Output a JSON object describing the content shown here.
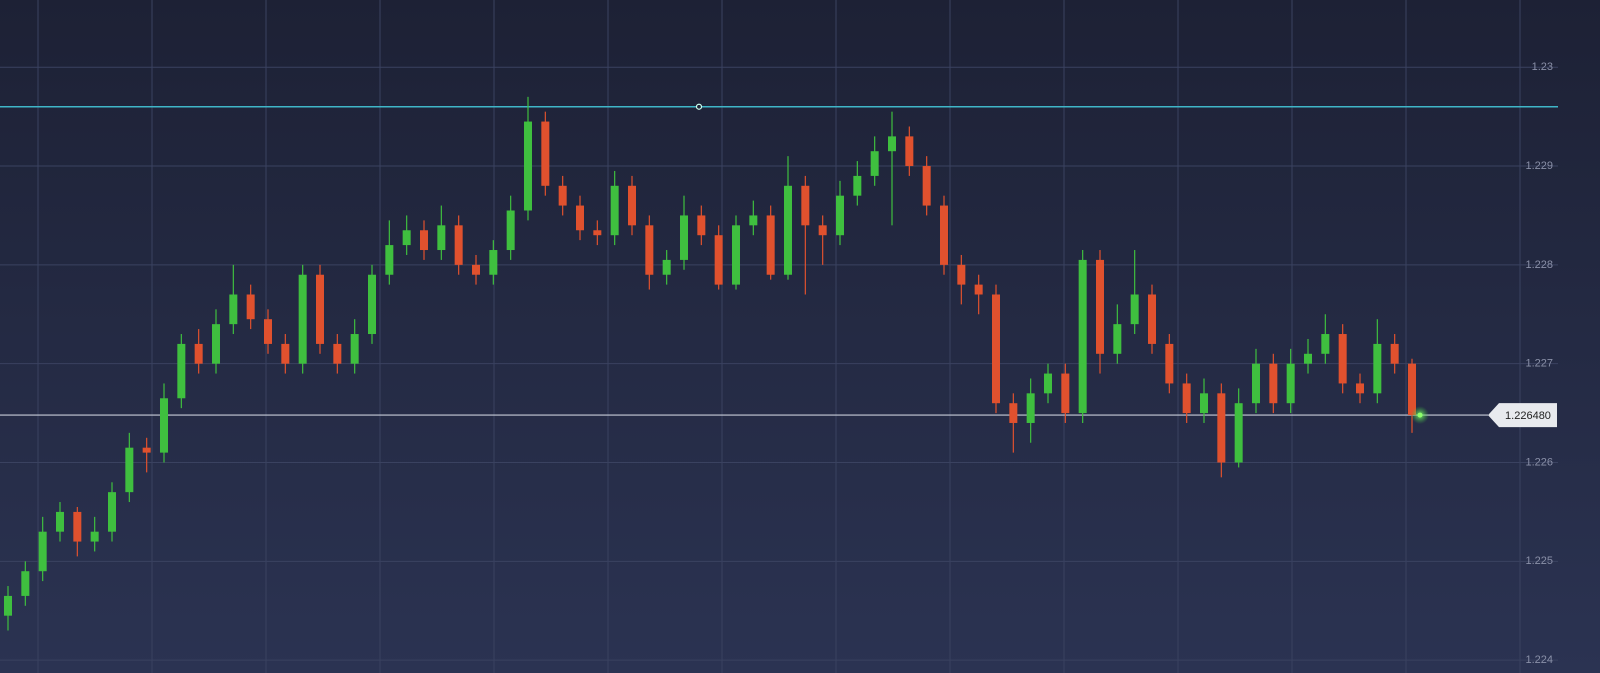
{
  "chart_data": {
    "type": "candlestick",
    "up_color": "#3fbf3f",
    "down_color": "#e0512e",
    "ylim": [
      1.22387,
      1.23068
    ],
    "yticks": [
      1.224,
      1.225,
      1.226,
      1.227,
      1.228,
      1.229,
      1.23
    ],
    "grid": true,
    "level": 1.2296,
    "current_price": {
      "value": 1.22648,
      "label": "1.226480"
    },
    "open": [
      1.22445,
      1.22465,
      1.2249,
      1.2253,
      1.2255,
      1.2252,
      1.2253,
      1.2257,
      1.22615,
      1.2261,
      1.22665,
      1.2272,
      1.227,
      1.2274,
      1.2277,
      1.22745,
      1.2272,
      1.227,
      1.2279,
      1.2272,
      1.227,
      1.2273,
      1.2279,
      1.2282,
      1.22835,
      1.22815,
      1.2284,
      1.228,
      1.2279,
      1.22815,
      1.22855,
      1.22945,
      1.2288,
      1.2286,
      1.22835,
      1.2283,
      1.2288,
      1.2284,
      1.2279,
      1.22805,
      1.2285,
      1.2283,
      1.2278,
      1.2284,
      1.2285,
      1.2279,
      1.2288,
      1.2284,
      1.2283,
      1.2287,
      1.2289,
      1.22915,
      1.2293,
      1.229,
      1.2286,
      1.228,
      1.2278,
      1.2277,
      1.2266,
      1.2264,
      1.2267,
      1.2269,
      1.2265,
      1.22805,
      1.2271,
      1.2274,
      1.2277,
      1.2272,
      1.2268,
      1.2265,
      1.2267,
      1.226,
      1.2266,
      1.227,
      1.2266,
      1.227,
      1.2271,
      1.2273,
      1.2268,
      1.2267,
      1.2272,
      1.227
    ],
    "high": [
      1.22475,
      1.225,
      1.22545,
      1.2256,
      1.22555,
      1.22545,
      1.2258,
      1.2263,
      1.22625,
      1.2268,
      1.2273,
      1.22735,
      1.22755,
      1.228,
      1.2278,
      1.22755,
      1.2273,
      1.228,
      1.228,
      1.2273,
      1.22745,
      1.228,
      1.22845,
      1.2285,
      1.22845,
      1.2286,
      1.2285,
      1.2281,
      1.22825,
      1.2287,
      1.2297,
      1.22955,
      1.2289,
      1.2287,
      1.22845,
      1.22895,
      1.2289,
      1.2285,
      1.22815,
      1.2287,
      1.2286,
      1.2284,
      1.2285,
      1.22865,
      1.2286,
      1.2291,
      1.2289,
      1.2285,
      1.22885,
      1.22905,
      1.2293,
      1.22955,
      1.2294,
      1.2291,
      1.2287,
      1.2281,
      1.2279,
      1.2278,
      1.2267,
      1.22685,
      1.227,
      1.227,
      1.22815,
      1.22815,
      1.2276,
      1.22815,
      1.2278,
      1.2273,
      1.2269,
      1.22685,
      1.2268,
      1.22675,
      1.22715,
      1.2271,
      1.22715,
      1.22725,
      1.2275,
      1.2274,
      1.2269,
      1.22745,
      1.2273,
      1.22705
    ],
    "low": [
      1.2243,
      1.22455,
      1.2248,
      1.2252,
      1.22505,
      1.2251,
      1.2252,
      1.2256,
      1.2259,
      1.226,
      1.22655,
      1.2269,
      1.2269,
      1.2273,
      1.22735,
      1.2271,
      1.2269,
      1.2269,
      1.2271,
      1.2269,
      1.2269,
      1.2272,
      1.2278,
      1.2281,
      1.22805,
      1.22805,
      1.2279,
      1.2278,
      1.2278,
      1.22805,
      1.22845,
      1.2287,
      1.2285,
      1.22825,
      1.2282,
      1.2282,
      1.2283,
      1.22775,
      1.2278,
      1.22795,
      1.2282,
      1.22775,
      1.22775,
      1.2283,
      1.22785,
      1.22785,
      1.2277,
      1.228,
      1.2282,
      1.2286,
      1.2288,
      1.2284,
      1.2289,
      1.2285,
      1.2279,
      1.2276,
      1.2275,
      1.2265,
      1.2261,
      1.2262,
      1.2266,
      1.2264,
      1.2264,
      1.2269,
      1.227,
      1.2273,
      1.2271,
      1.2267,
      1.2264,
      1.2264,
      1.22585,
      1.22595,
      1.2265,
      1.2265,
      1.2265,
      1.2269,
      1.227,
      1.2267,
      1.2266,
      1.2266,
      1.2269,
      1.2263
    ],
    "close": [
      1.22465,
      1.2249,
      1.2253,
      1.2255,
      1.2252,
      1.2253,
      1.2257,
      1.22615,
      1.2261,
      1.22665,
      1.2272,
      1.227,
      1.2274,
      1.2277,
      1.22745,
      1.2272,
      1.227,
      1.2279,
      1.2272,
      1.227,
      1.2273,
      1.2279,
      1.2282,
      1.22835,
      1.22815,
      1.2284,
      1.228,
      1.2279,
      1.22815,
      1.22855,
      1.22945,
      1.2288,
      1.2286,
      1.22835,
      1.2283,
      1.2288,
      1.2284,
      1.2279,
      1.22805,
      1.2285,
      1.2283,
      1.2278,
      1.2284,
      1.2285,
      1.2279,
      1.2288,
      1.2284,
      1.2283,
      1.2287,
      1.2289,
      1.22915,
      1.2293,
      1.229,
      1.2286,
      1.228,
      1.2278,
      1.2277,
      1.2266,
      1.2264,
      1.2267,
      1.2269,
      1.2265,
      1.22805,
      1.2271,
      1.2274,
      1.2277,
      1.2272,
      1.2268,
      1.2265,
      1.2267,
      1.226,
      1.2266,
      1.227,
      1.2266,
      1.227,
      1.2271,
      1.2273,
      1.2268,
      1.2267,
      1.2272,
      1.227,
      1.22648
    ]
  }
}
